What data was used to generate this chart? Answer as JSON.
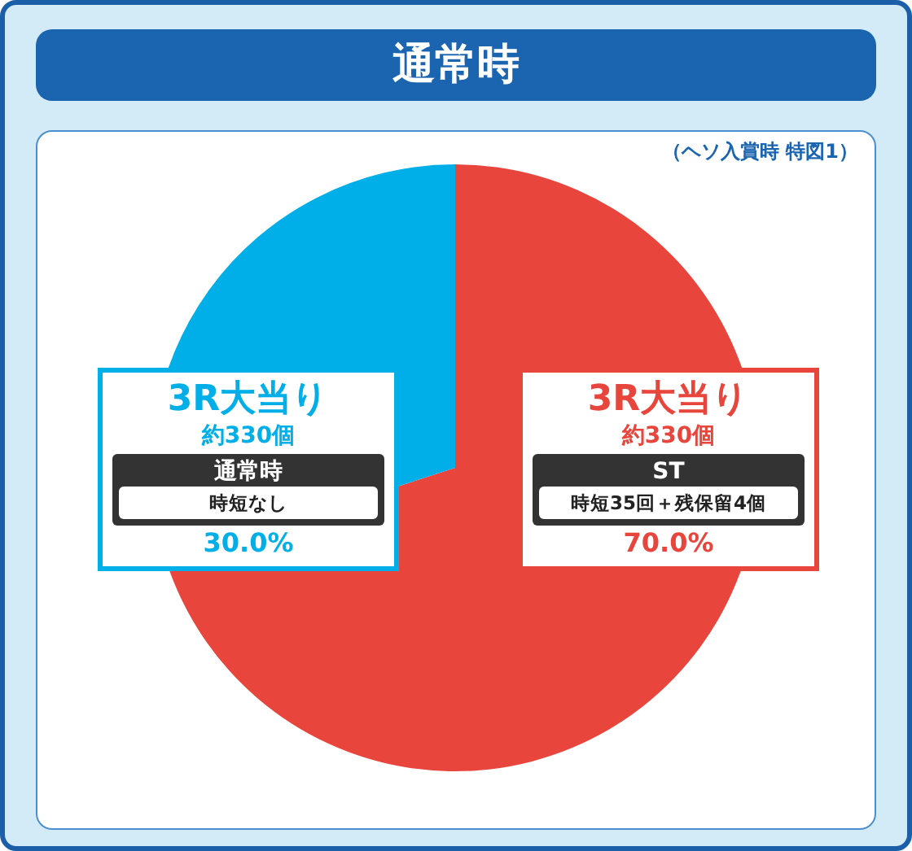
{
  "chart_data": {
    "type": "pie",
    "title": "通常時",
    "subtitle": "（ヘソ入賞時 特図1）",
    "categories": [
      "ST",
      "通常時"
    ],
    "values": [
      70,
      30
    ],
    "colors": [
      "#e8463d",
      "#00aee8"
    ],
    "value_labels": [
      "70.0%",
      "30.0%"
    ],
    "annotations": [
      "3R大当り",
      "約330個",
      "時短35回＋残保留4個",
      "3R大当り",
      "約330個",
      "時短なし"
    ],
    "legend": false
  }
}
